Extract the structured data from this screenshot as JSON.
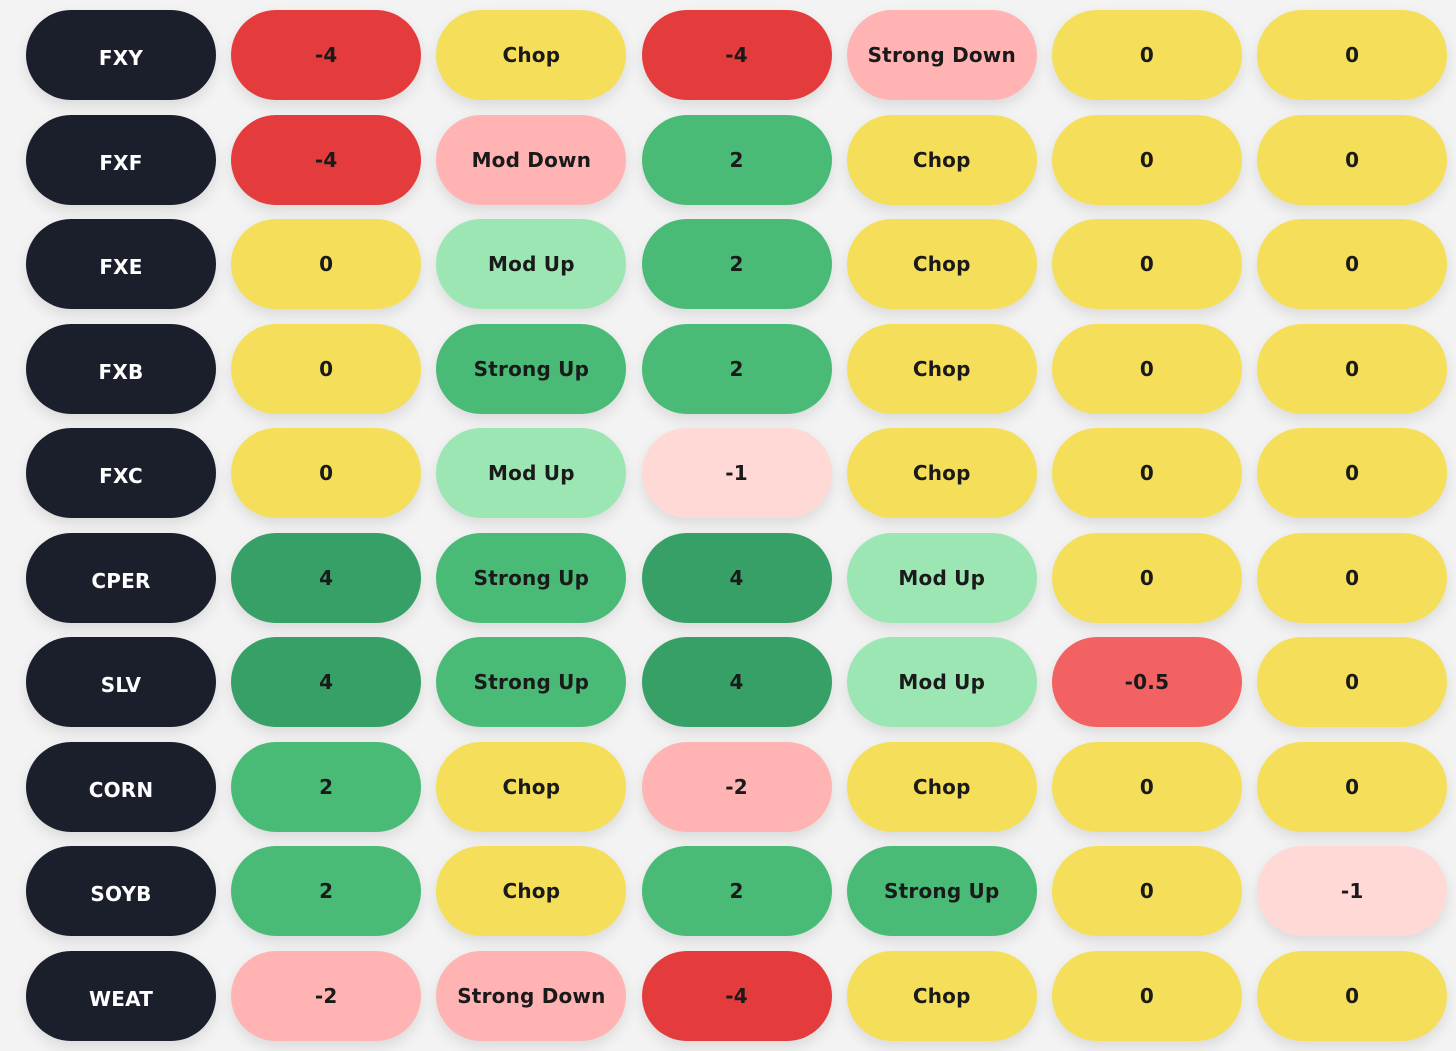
{
  "colors": {
    "ticker": "#1b1f2c",
    "neutral": "#f5df5a",
    "strong_neg": "#e43c3c",
    "neg_half": "#f36262",
    "light_neg": "#ffb3b3",
    "faint_neg": "#ffd9d6",
    "light_pos": "#9ce6b4",
    "pos": "#49bb77",
    "strong_pos": "#37a066"
  },
  "rows": [
    {
      "ticker": "FXY",
      "cells": [
        {
          "text": "-4",
          "tone": "strong_neg"
        },
        {
          "text": "Chop",
          "tone": "neutral"
        },
        {
          "text": "-4",
          "tone": "strong_neg"
        },
        {
          "text": "Strong Down",
          "tone": "light_neg"
        },
        {
          "text": "0",
          "tone": "neutral"
        },
        {
          "text": "0",
          "tone": "neutral"
        }
      ]
    },
    {
      "ticker": "FXF",
      "cells": [
        {
          "text": "-4",
          "tone": "strong_neg"
        },
        {
          "text": "Mod Down",
          "tone": "light_neg"
        },
        {
          "text": "2",
          "tone": "pos"
        },
        {
          "text": "Chop",
          "tone": "neutral"
        },
        {
          "text": "0",
          "tone": "neutral"
        },
        {
          "text": "0",
          "tone": "neutral"
        }
      ]
    },
    {
      "ticker": "FXE",
      "cells": [
        {
          "text": "0",
          "tone": "neutral"
        },
        {
          "text": "Mod Up",
          "tone": "light_pos"
        },
        {
          "text": "2",
          "tone": "pos"
        },
        {
          "text": "Chop",
          "tone": "neutral"
        },
        {
          "text": "0",
          "tone": "neutral"
        },
        {
          "text": "0",
          "tone": "neutral"
        }
      ]
    },
    {
      "ticker": "FXB",
      "cells": [
        {
          "text": "0",
          "tone": "neutral"
        },
        {
          "text": "Strong Up",
          "tone": "pos"
        },
        {
          "text": "2",
          "tone": "pos"
        },
        {
          "text": "Chop",
          "tone": "neutral"
        },
        {
          "text": "0",
          "tone": "neutral"
        },
        {
          "text": "0",
          "tone": "neutral"
        }
      ]
    },
    {
      "ticker": "FXC",
      "cells": [
        {
          "text": "0",
          "tone": "neutral"
        },
        {
          "text": "Mod Up",
          "tone": "light_pos"
        },
        {
          "text": "-1",
          "tone": "faint_neg"
        },
        {
          "text": "Chop",
          "tone": "neutral"
        },
        {
          "text": "0",
          "tone": "neutral"
        },
        {
          "text": "0",
          "tone": "neutral"
        }
      ]
    },
    {
      "ticker": "CPER",
      "cells": [
        {
          "text": "4",
          "tone": "strong_pos"
        },
        {
          "text": "Strong Up",
          "tone": "pos"
        },
        {
          "text": "4",
          "tone": "strong_pos"
        },
        {
          "text": "Mod Up",
          "tone": "light_pos"
        },
        {
          "text": "0",
          "tone": "neutral"
        },
        {
          "text": "0",
          "tone": "neutral"
        }
      ]
    },
    {
      "ticker": "SLV",
      "cells": [
        {
          "text": "4",
          "tone": "strong_pos"
        },
        {
          "text": "Strong Up",
          "tone": "pos"
        },
        {
          "text": "4",
          "tone": "strong_pos"
        },
        {
          "text": "Mod Up",
          "tone": "light_pos"
        },
        {
          "text": "-0.5",
          "tone": "neg_half"
        },
        {
          "text": "0",
          "tone": "neutral"
        }
      ]
    },
    {
      "ticker": "CORN",
      "cells": [
        {
          "text": "2",
          "tone": "pos"
        },
        {
          "text": "Chop",
          "tone": "neutral"
        },
        {
          "text": "-2",
          "tone": "light_neg"
        },
        {
          "text": "Chop",
          "tone": "neutral"
        },
        {
          "text": "0",
          "tone": "neutral"
        },
        {
          "text": "0",
          "tone": "neutral"
        }
      ]
    },
    {
      "ticker": "SOYB",
      "cells": [
        {
          "text": "2",
          "tone": "pos"
        },
        {
          "text": "Chop",
          "tone": "neutral"
        },
        {
          "text": "2",
          "tone": "pos"
        },
        {
          "text": "Strong Up",
          "tone": "pos"
        },
        {
          "text": "0",
          "tone": "neutral"
        },
        {
          "text": "-1",
          "tone": "faint_neg"
        }
      ]
    },
    {
      "ticker": "WEAT",
      "cells": [
        {
          "text": "-2",
          "tone": "light_neg"
        },
        {
          "text": "Strong Down",
          "tone": "light_neg"
        },
        {
          "text": "-4",
          "tone": "strong_neg"
        },
        {
          "text": "Chop",
          "tone": "neutral"
        },
        {
          "text": "0",
          "tone": "neutral"
        },
        {
          "text": "0",
          "tone": "neutral"
        }
      ]
    }
  ]
}
